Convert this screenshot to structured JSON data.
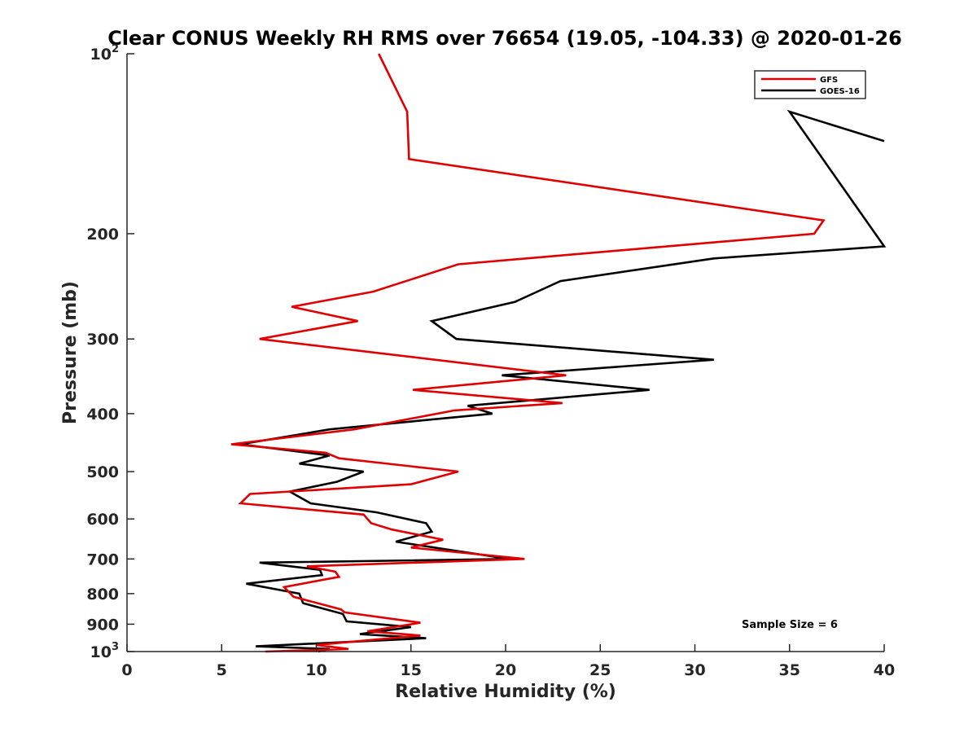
{
  "chart_data": {
    "type": "line",
    "title": "Clear CONUS Weekly RH RMS over 76654 (19.05, -104.33) @ 2020-01-26",
    "xlabel": "Relative Humidity (%)",
    "ylabel": "Pressure (mb)",
    "xlim": [
      0,
      40
    ],
    "ylim": [
      100,
      1000
    ],
    "yscale": "log",
    "y_reversed": true,
    "grid": false,
    "legend_position": "top-right",
    "x_ticks": [
      {
        "value": 0,
        "label": "0"
      },
      {
        "value": 5,
        "label": "5"
      },
      {
        "value": 10,
        "label": "10"
      },
      {
        "value": 15,
        "label": "15"
      },
      {
        "value": 20,
        "label": "20"
      },
      {
        "value": 25,
        "label": "25"
      },
      {
        "value": 30,
        "label": "30"
      },
      {
        "value": 35,
        "label": "35"
      },
      {
        "value": 40,
        "label": "40"
      }
    ],
    "y_ticks": [
      {
        "value": 100,
        "label": "10",
        "sup": "2"
      },
      {
        "value": 200,
        "label": "200"
      },
      {
        "value": 300,
        "label": "300"
      },
      {
        "value": 400,
        "label": "400"
      },
      {
        "value": 500,
        "label": "500"
      },
      {
        "value": 600,
        "label": "600"
      },
      {
        "value": 700,
        "label": "700"
      },
      {
        "value": 800,
        "label": "800"
      },
      {
        "value": 900,
        "label": "900"
      },
      {
        "value": 1000,
        "label": "10",
        "sup": "3"
      }
    ],
    "annotation": "Sample Size = 6",
    "series": [
      {
        "name": "GFS",
        "color": "#e00000",
        "points": [
          [
            13.3,
            100
          ],
          [
            14.8,
            125
          ],
          [
            14.9,
            150
          ],
          [
            36.8,
            190
          ],
          [
            36.3,
            200
          ],
          [
            17.5,
            225
          ],
          [
            13.0,
            250
          ],
          [
            8.7,
            265
          ],
          [
            12.2,
            280
          ],
          [
            7.0,
            300
          ],
          [
            23.2,
            345
          ],
          [
            15.1,
            365
          ],
          [
            23.0,
            384
          ],
          [
            17.3,
            395
          ],
          [
            12.0,
            425
          ],
          [
            5.5,
            450
          ],
          [
            10.5,
            465
          ],
          [
            11.2,
            475
          ],
          [
            17.5,
            500
          ],
          [
            15.0,
            525
          ],
          [
            6.5,
            545
          ],
          [
            6.0,
            565
          ],
          [
            12.5,
            590
          ],
          [
            12.9,
            610
          ],
          [
            14.0,
            625
          ],
          [
            16.7,
            650
          ],
          [
            15.0,
            670
          ],
          [
            21.0,
            700
          ],
          [
            9.5,
            720
          ],
          [
            11.0,
            735
          ],
          [
            11.2,
            750
          ],
          [
            8.3,
            780
          ],
          [
            8.8,
            810
          ],
          [
            11.3,
            850
          ],
          [
            11.5,
            860
          ],
          [
            15.5,
            895
          ],
          [
            12.7,
            925
          ],
          [
            15.5,
            940
          ],
          [
            10.0,
            975
          ],
          [
            11.7,
            990
          ],
          [
            7.3,
            1000
          ]
        ]
      },
      {
        "name": "GOES-16",
        "color": "#000000",
        "points": [
          [
            40,
            140
          ],
          [
            35,
            125
          ],
          [
            40,
            210
          ],
          [
            31,
            220
          ],
          [
            22.9,
            240
          ],
          [
            20.5,
            260
          ],
          [
            16.1,
            280
          ],
          [
            17.4,
            300
          ],
          [
            31.0,
            325
          ],
          [
            19.8,
            345
          ],
          [
            27.6,
            365
          ],
          [
            18.0,
            388
          ],
          [
            19.3,
            400
          ],
          [
            10.7,
            425
          ],
          [
            6.0,
            450
          ],
          [
            10.7,
            470
          ],
          [
            9.1,
            485
          ],
          [
            12.5,
            500
          ],
          [
            11.1,
            520
          ],
          [
            8.6,
            540
          ],
          [
            9.7,
            565
          ],
          [
            13.2,
            585
          ],
          [
            15.8,
            610
          ],
          [
            16.1,
            630
          ],
          [
            14.2,
            655
          ],
          [
            20.2,
            700
          ],
          [
            7.0,
            710
          ],
          [
            10.2,
            730
          ],
          [
            10.3,
            745
          ],
          [
            6.3,
            770
          ],
          [
            9.1,
            800
          ],
          [
            9.3,
            830
          ],
          [
            11.4,
            865
          ],
          [
            11.6,
            890
          ],
          [
            15.0,
            910
          ],
          [
            12.3,
            935
          ],
          [
            15.8,
            950
          ],
          [
            6.8,
            980
          ],
          [
            10.7,
            990
          ],
          [
            10.1,
            1000
          ]
        ]
      }
    ]
  }
}
